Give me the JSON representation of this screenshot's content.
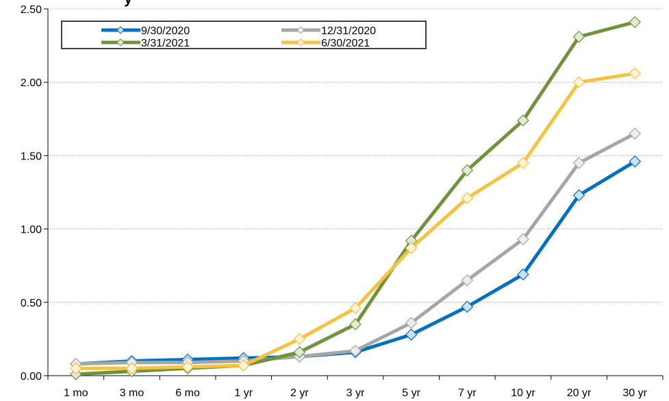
{
  "chart_data": {
    "type": "line",
    "title_fragment": "y",
    "categories": [
      "1 mo",
      "3 mo",
      "6 mo",
      "1 yr",
      "2 yr",
      "3 yr",
      "5 yr",
      "7 yr",
      "10 yr",
      "20 yr",
      "30 yr"
    ],
    "ylim": [
      0,
      2.5
    ],
    "yticks": [
      "0.00",
      "0.50",
      "1.00",
      "1.50",
      "2.00",
      "2.50"
    ],
    "grid": true,
    "legend_position": "top-left",
    "series": [
      {
        "name": "9/30/2020",
        "color": "#0070C0",
        "values": [
          0.08,
          0.1,
          0.11,
          0.12,
          0.13,
          0.16,
          0.28,
          0.47,
          0.69,
          1.23,
          1.46
        ]
      },
      {
        "name": "12/31/2020",
        "color": "#A6A6A6",
        "values": [
          0.08,
          0.09,
          0.09,
          0.1,
          0.13,
          0.17,
          0.36,
          0.65,
          0.93,
          1.45,
          1.65
        ]
      },
      {
        "name": "3/31/2021",
        "color": "#70933A",
        "values": [
          0.01,
          0.03,
          0.05,
          0.07,
          0.16,
          0.35,
          0.92,
          1.4,
          1.74,
          2.31,
          2.41
        ]
      },
      {
        "name": "6/30/2021",
        "color": "#F5C242",
        "values": [
          0.05,
          0.05,
          0.06,
          0.07,
          0.25,
          0.46,
          0.87,
          1.21,
          1.45,
          2.0,
          2.06
        ]
      }
    ]
  }
}
